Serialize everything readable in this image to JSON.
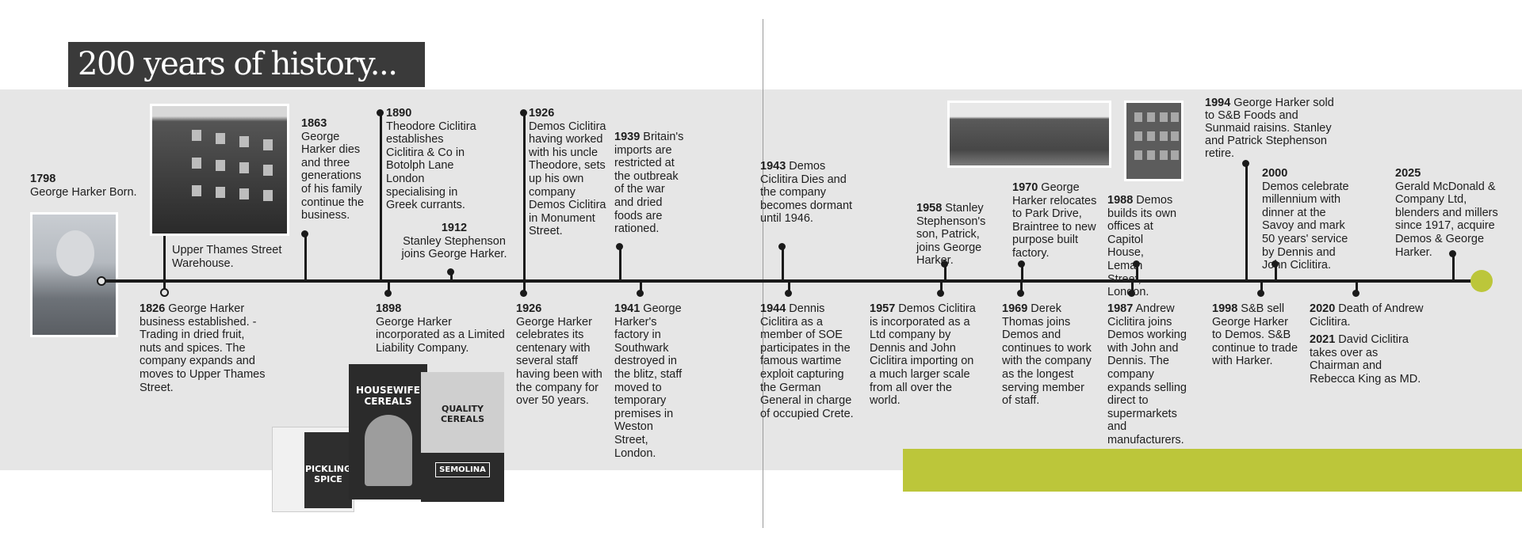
{
  "title": "200 years of history...",
  "colors": {
    "accent_green": "#bcc63a",
    "band_gray": "#e6e6e6",
    "title_bg": "#3a3a3a",
    "line": "#1a1a1a"
  },
  "photo_captions": {
    "warehouse": "Upper Thames Street Warehouse."
  },
  "packaging_lettering": [
    "PICKLING SPICE",
    "HOUSEWIFE CEREALS",
    "QUALITY CEREALS",
    "SEMOLINA"
  ],
  "events": {
    "e1798": {
      "year": "1798",
      "text": "George Harker Born."
    },
    "e1826": {
      "year": "1826",
      "text": " George Harker business established. - Trading in dried fruit, nuts and spices. The company expands and moves to Upper Thames Street."
    },
    "e1863": {
      "year": "1863",
      "text": "George Harker dies and three generations of his family continue the business."
    },
    "e1890": {
      "year": "1890",
      "text": "Theodore Ciclitira establishes Ciclitira & Co in Botolph Lane London specialising in Greek currants."
    },
    "e1898": {
      "year": "1898",
      "text": "George Harker incorporated as a Limited Liability Company."
    },
    "e1912": {
      "year": "1912",
      "text": "Stanley Stephenson joins George Harker."
    },
    "e1926a": {
      "year": "1926",
      "text": "Demos Ciclitira having worked with his uncle Theodore, sets up his own company Demos Ciclitira in Monument Street."
    },
    "e1926b": {
      "year": "1926",
      "text": "George Harker celebrates its centenary with several staff having been with the company for over 50 years."
    },
    "e1939": {
      "year": "1939",
      "text": " Britain's imports are restricted at the outbreak of the war and dried foods are rationed."
    },
    "e1941": {
      "year": "1941",
      "text": " George Harker's factory in Southwark destroyed in the blitz, staff moved to temporary premises in Weston Street, London."
    },
    "e1943": {
      "year": "1943",
      "text": " Demos Ciclitira Dies and the company becomes dormant until 1946."
    },
    "e1944": {
      "year": "1944",
      "text": " Dennis Ciclitira as a member of SOE participates in the famous wartime exploit capturing the German General in charge of occupied Crete."
    },
    "e1957": {
      "year": "1957",
      "text": " Demos Ciclitira is incorporated as a Ltd company  by Dennis and John Ciclitira  importing on a much larger scale from all over the world."
    },
    "e1958": {
      "year": "1958",
      "text": " Stanley Stephenson's son, Patrick, joins George Harker."
    },
    "e1969": {
      "year": "1969",
      "text": " Derek Thomas joins Demos and continues to work with the company as the longest serving member of staff."
    },
    "e1970": {
      "year": "1970",
      "text": " George Harker relocates to Park Drive, Braintree to new purpose built factory."
    },
    "e1987": {
      "year": "1987",
      "text": " Andrew Ciclitira joins Demos working with John and Dennis. The company expands selling direct to supermarkets and manufacturers."
    },
    "e1988": {
      "year": "1988",
      "text": " Demos builds its own offices at Capitol House, Leman Street, London."
    },
    "e1994": {
      "year": "1994",
      "text": " George Harker sold to S&B Foods and Sunmaid raisins. Stanley and Patrick Stephenson retire."
    },
    "e1998": {
      "year": "1998",
      "text": " S&B sell George Harker to Demos. S&B continue to trade with Harker."
    },
    "e2000": {
      "year": "2000",
      "text": "Demos celebrate millennium with dinner at the Savoy and mark 50 years' service by Dennis and John Ciclitira."
    },
    "e2020": {
      "year": "2020",
      "text": " Death of Andrew Ciclitira."
    },
    "e2021": {
      "year": "2021",
      "text": " David Ciclitira takes over as Chairman and Rebecca King as MD."
    },
    "e2025": {
      "year": "2025",
      "text": "Gerald McDonald & Company Ltd, blenders and millers since 1917, acquire Demos & George Harker."
    }
  }
}
